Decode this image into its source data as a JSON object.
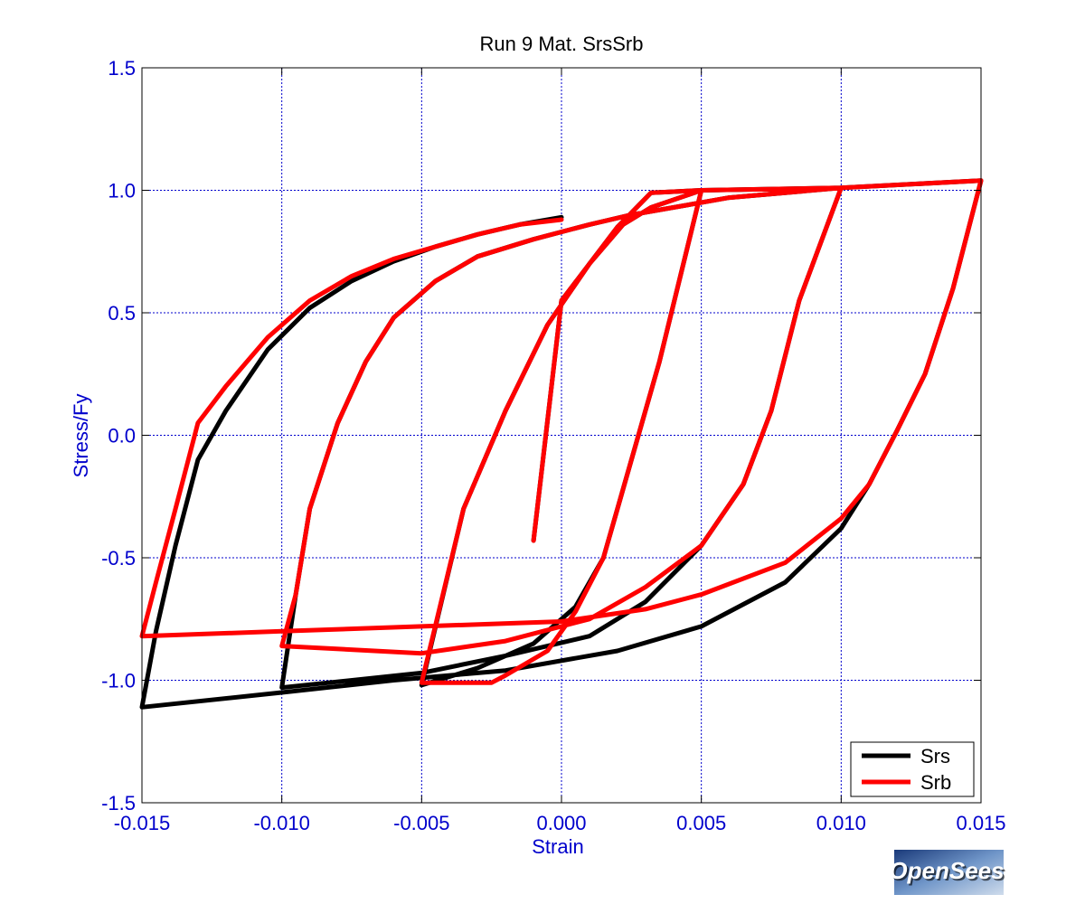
{
  "chart_data": {
    "type": "line",
    "title": "Run 9   Mat. SrsSrb",
    "xlabel": "Strain",
    "ylabel": "Stress/Fy",
    "xlim": [
      -0.015,
      0.015
    ],
    "ylim": [
      -1.5,
      1.5
    ],
    "xticks": [
      -0.015,
      -0.01,
      -0.005,
      0.0,
      0.005,
      0.01,
      0.015
    ],
    "xtick_labels": [
      "-0.015",
      "-0.010",
      "-0.005",
      "0.000",
      "0.005",
      "0.010",
      "0.015"
    ],
    "yticks": [
      -1.5,
      -1.0,
      -0.5,
      0.0,
      0.5,
      1.0,
      1.5
    ],
    "ytick_labels": [
      "-1.5",
      "-1.0",
      "-0.5",
      "0.0",
      "0.5",
      "1.0",
      "1.5"
    ],
    "grid": true,
    "legend_position": "bottom-right",
    "colors": {
      "axis_text": "#0000cc",
      "grid": "#0000cc",
      "srs": "#000000",
      "srb": "#ff0000"
    },
    "series": [
      {
        "name": "Srs",
        "color": "#000000",
        "x": [
          -0.001,
          0.0,
          0.002,
          0.0032,
          0.005,
          0.0035,
          0.002,
          0.0015,
          0.0005,
          -0.001,
          -0.003,
          -0.005,
          -0.0035,
          -0.002,
          -0.0005,
          0.001,
          0.0022,
          0.0032,
          0.005,
          0.01,
          0.0085,
          0.0075,
          0.0065,
          0.005,
          0.003,
          0.001,
          -0.002,
          -0.005,
          -0.01,
          -0.0095,
          -0.009,
          -0.008,
          -0.007,
          -0.006,
          -0.0045,
          -0.003,
          -0.001,
          0.001,
          0.0025,
          0.004,
          0.006,
          0.008,
          0.01,
          0.015,
          0.014,
          0.013,
          0.012,
          0.011,
          0.01,
          0.008,
          0.005,
          0.002,
          -0.002,
          -0.006,
          -0.01,
          -0.015,
          -0.0145,
          -0.0138,
          -0.013,
          -0.012,
          -0.0105,
          -0.009,
          -0.0075,
          -0.006,
          -0.0045,
          -0.003,
          -0.0015,
          0.0
        ],
        "y": [
          -0.43,
          0.55,
          0.85,
          0.99,
          1.0,
          0.3,
          -0.3,
          -0.5,
          -0.7,
          -0.85,
          -0.95,
          -1.02,
          -0.3,
          0.1,
          0.45,
          0.7,
          0.86,
          0.93,
          1.0,
          1.01,
          0.55,
          0.1,
          -0.2,
          -0.45,
          -0.68,
          -0.82,
          -0.9,
          -0.97,
          -1.03,
          -0.65,
          -0.3,
          0.05,
          0.3,
          0.48,
          0.63,
          0.73,
          0.8,
          0.86,
          0.9,
          0.93,
          0.97,
          0.99,
          1.01,
          1.04,
          0.6,
          0.25,
          0.02,
          -0.2,
          -0.38,
          -0.6,
          -0.78,
          -0.88,
          -0.96,
          -1.0,
          -1.05,
          -1.11,
          -0.8,
          -0.45,
          -0.1,
          0.1,
          0.35,
          0.52,
          0.63,
          0.71,
          0.77,
          0.82,
          0.86,
          0.89
        ]
      },
      {
        "name": "Srb",
        "color": "#ff0000",
        "x": [
          -0.001,
          0.0,
          0.002,
          0.0032,
          0.005,
          0.0035,
          0.002,
          0.0015,
          0.0005,
          -0.0005,
          -0.002,
          -0.0025,
          -0.005,
          -0.0035,
          -0.002,
          -0.0005,
          0.001,
          0.0022,
          0.0032,
          0.005,
          0.01,
          0.0085,
          0.0075,
          0.0065,
          0.005,
          0.003,
          0.001,
          -0.002,
          -0.005,
          -0.01,
          -0.0095,
          -0.009,
          -0.008,
          -0.007,
          -0.006,
          -0.0045,
          -0.003,
          -0.001,
          0.001,
          0.0025,
          0.004,
          0.006,
          0.008,
          0.01,
          0.015,
          0.014,
          0.013,
          0.012,
          0.011,
          0.01,
          0.008,
          0.005,
          0.003,
          0.0,
          -0.005,
          -0.01,
          -0.015,
          -0.0145,
          -0.0138,
          -0.013,
          -0.012,
          -0.0105,
          -0.009,
          -0.0075,
          -0.006,
          -0.0045,
          -0.003,
          -0.0015,
          0.0
        ],
        "y": [
          -0.43,
          0.55,
          0.85,
          0.99,
          1.0,
          0.3,
          -0.3,
          -0.5,
          -0.72,
          -0.88,
          -0.98,
          -1.01,
          -1.01,
          -0.3,
          0.1,
          0.45,
          0.7,
          0.86,
          0.93,
          1.0,
          1.01,
          0.55,
          0.1,
          -0.2,
          -0.45,
          -0.62,
          -0.75,
          -0.84,
          -0.89,
          -0.86,
          -0.65,
          -0.3,
          0.05,
          0.3,
          0.48,
          0.63,
          0.73,
          0.8,
          0.86,
          0.9,
          0.93,
          0.97,
          0.99,
          1.01,
          1.04,
          0.6,
          0.25,
          0.02,
          -0.2,
          -0.34,
          -0.52,
          -0.65,
          -0.71,
          -0.76,
          -0.78,
          -0.8,
          -0.82,
          -0.6,
          -0.3,
          0.05,
          0.2,
          0.4,
          0.55,
          0.65,
          0.72,
          0.77,
          0.82,
          0.86,
          0.88
        ]
      }
    ]
  },
  "logo": {
    "text": "OpenSees"
  }
}
